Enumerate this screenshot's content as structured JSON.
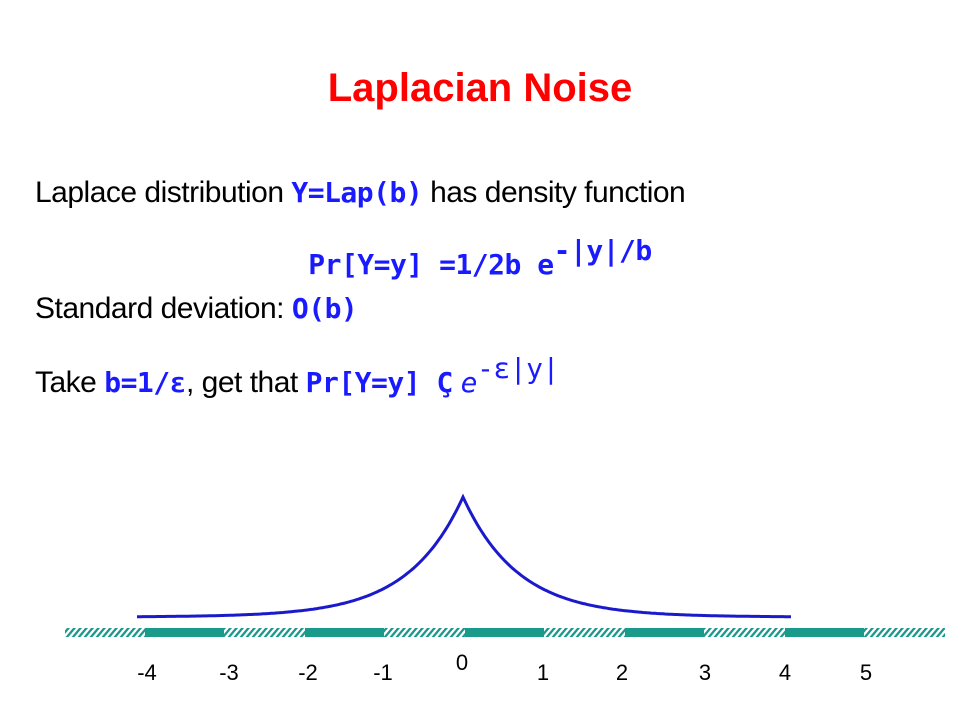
{
  "title": "Laplacian Noise",
  "line1": {
    "text_a": "Laplace distribution",
    "formula": "Y=Lap(b)",
    "text_b": "has density function"
  },
  "line2": {
    "formula": "Pr[Y=y] =1/2b e",
    "exponent": "-|y|/b"
  },
  "line3": {
    "text_a": "Standard deviation:",
    "formula": "O(b)"
  },
  "line4": {
    "text_a": "Take",
    "formula_a": "b=1/ε",
    "text_b": ", get that",
    "formula_b": "Pr[Y=y] Ç",
    "formula_c": "e",
    "exponent": "-ε|y|"
  },
  "axis_labels": [
    "-4",
    "-3",
    "-2",
    "-1",
    "0",
    "1",
    "2",
    "3",
    "4",
    "5"
  ]
}
